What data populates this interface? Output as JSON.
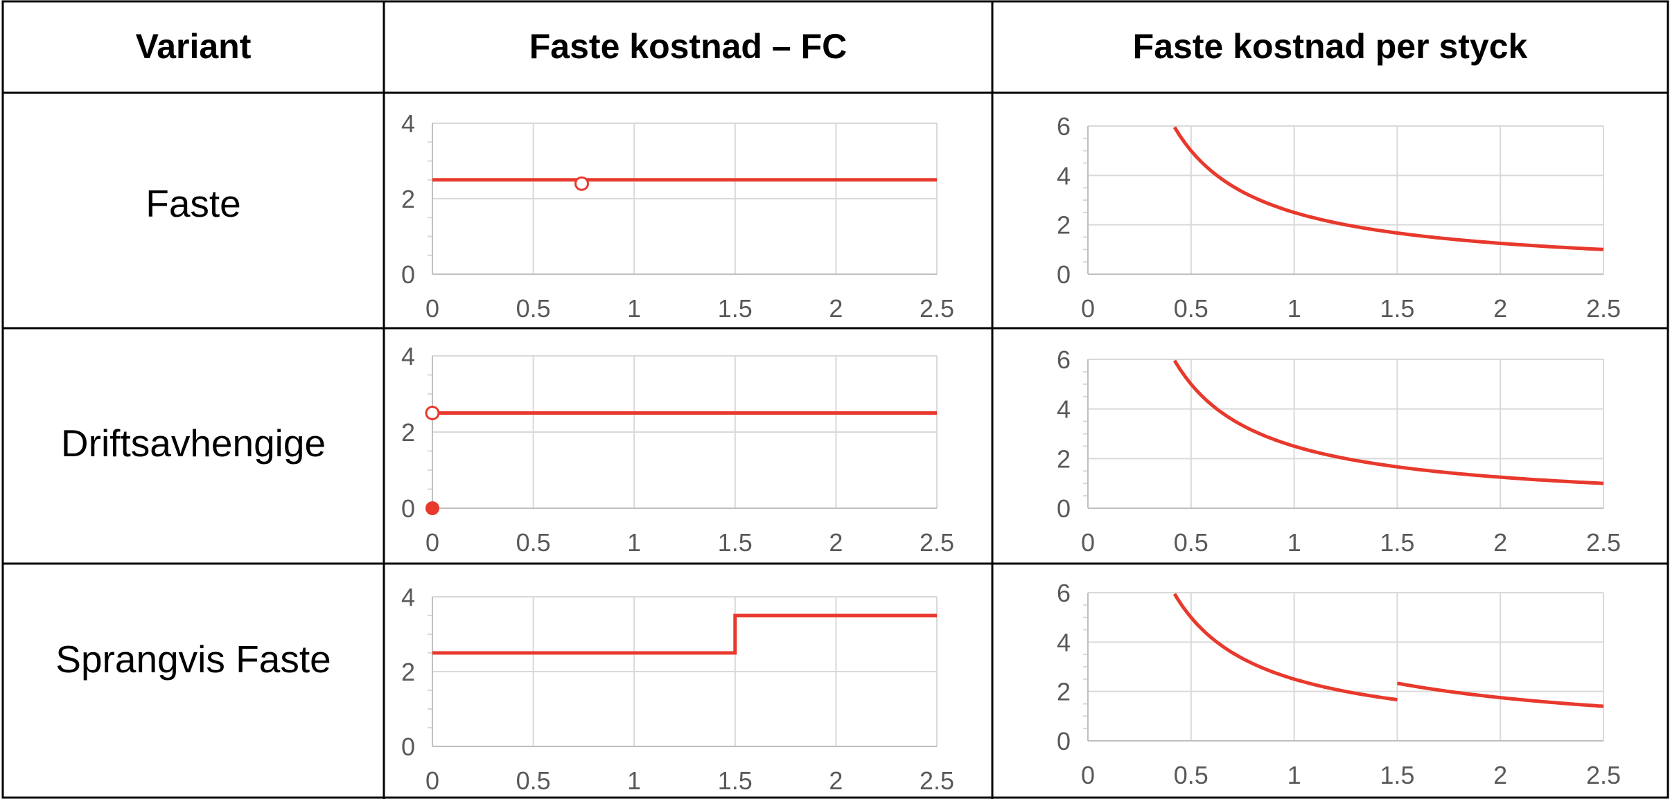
{
  "table": {
    "headers": [
      "Variant",
      "Faste kostnad – FC",
      "Faste kostnad per styck"
    ],
    "rows": [
      {
        "label": "Faste"
      },
      {
        "label": "Driftsavhengige"
      },
      {
        "label": "Sprangvis Faste"
      }
    ]
  },
  "colors": {
    "line": "#e8392d",
    "grid": "#d9d9d9",
    "tick": "#595959",
    "border": "#000000"
  },
  "chart_data": [
    {
      "type": "line",
      "row": "Faste",
      "column": "Faste kostnad – FC",
      "x_ticks": [
        "0",
        "0.5",
        "1",
        "1.5",
        "2",
        "2.5"
      ],
      "y_ticks": [
        "0",
        "2",
        "4"
      ],
      "xlim": [
        0,
        2.5
      ],
      "ylim": [
        0,
        4
      ],
      "grid": true,
      "series": [
        {
          "x": [
            0,
            2.5
          ],
          "y": [
            2.5,
            2.5
          ]
        }
      ],
      "markers": [
        {
          "x": 0.74,
          "y": 2.4,
          "style": "open"
        }
      ]
    },
    {
      "type": "line",
      "row": "Faste",
      "column": "Faste kostnad per styck",
      "x_ticks": [
        "0",
        "0.5",
        "1",
        "1.5",
        "2",
        "2.5"
      ],
      "y_ticks": [
        "0",
        "2",
        "4",
        "6"
      ],
      "xlim": [
        0,
        2.5
      ],
      "ylim": [
        0,
        6
      ],
      "grid": true,
      "series": [
        {
          "formula": "2.5/x",
          "x_start": 0.42,
          "x_end": 2.5
        }
      ]
    },
    {
      "type": "line",
      "row": "Driftsavhengige",
      "column": "Faste kostnad – FC",
      "x_ticks": [
        "0",
        "0.5",
        "1",
        "1.5",
        "2",
        "2.5"
      ],
      "y_ticks": [
        "0",
        "2",
        "4"
      ],
      "xlim": [
        0,
        2.5
      ],
      "ylim": [
        0,
        4
      ],
      "grid": true,
      "series": [
        {
          "x": [
            0,
            2.5
          ],
          "y": [
            2.5,
            2.5
          ]
        }
      ],
      "markers": [
        {
          "x": 0,
          "y": 2.5,
          "style": "open"
        },
        {
          "x": 0,
          "y": 0,
          "style": "filled"
        }
      ]
    },
    {
      "type": "line",
      "row": "Driftsavhengige",
      "column": "Faste kostnad per styck",
      "x_ticks": [
        "0",
        "0.5",
        "1",
        "1.5",
        "2",
        "2.5"
      ],
      "y_ticks": [
        "0",
        "2",
        "4",
        "6"
      ],
      "xlim": [
        0,
        2.5
      ],
      "ylim": [
        0,
        6
      ],
      "grid": true,
      "series": [
        {
          "formula": "2.5/x",
          "x_start": 0.42,
          "x_end": 2.5
        }
      ]
    },
    {
      "type": "line",
      "row": "Sprangvis Faste",
      "column": "Faste kostnad – FC",
      "x_ticks": [
        "0",
        "0.5",
        "1",
        "1.5",
        "2",
        "2.5"
      ],
      "y_ticks": [
        "0",
        "2",
        "4"
      ],
      "xlim": [
        0,
        2.5
      ],
      "ylim": [
        0,
        4
      ],
      "grid": true,
      "series": [
        {
          "x": [
            0,
            1.5,
            1.5,
            2.5
          ],
          "y": [
            2.5,
            2.5,
            3.5,
            3.5
          ]
        }
      ]
    },
    {
      "type": "line",
      "row": "Sprangvis Faste",
      "column": "Faste kostnad per styck",
      "x_ticks": [
        "0",
        "0.5",
        "1",
        "1.5",
        "2",
        "2.5"
      ],
      "y_ticks": [
        "0",
        "2",
        "4",
        "6"
      ],
      "xlim": [
        0,
        2.5
      ],
      "ylim": [
        0,
        6
      ],
      "grid": true,
      "series": [
        {
          "formula": "2.5/x",
          "x_start": 0.42,
          "x_end": 1.5
        },
        {
          "formula": "3.5/x",
          "x_start": 1.5,
          "x_end": 2.5
        }
      ]
    }
  ]
}
